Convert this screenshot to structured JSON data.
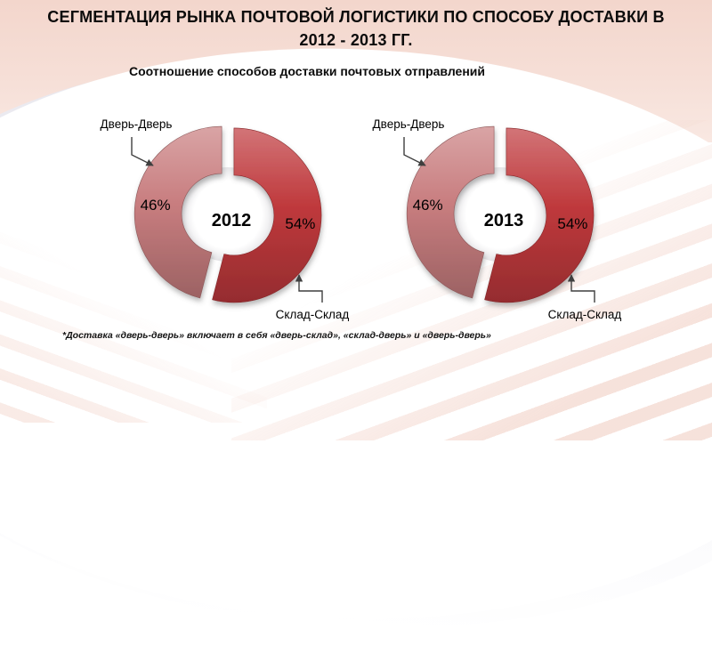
{
  "page": {
    "title_line1": "СЕГМЕНТАЦИЯ РЫНКА ПОЧТОВОЙ ЛОГИСТИКИ ПО СПОСОБУ ДОСТАВКИ В",
    "title_line2": "2012 - 2013 ГГ.",
    "subtitle": "Соотношение способов доставки почтовых отправлений",
    "footnote": "*Доставка «дверь-дверь» включает в себя «дверь-склад», «склад-дверь» и «дверь-дверь»"
  },
  "colors": {
    "door_to_door": "#c87d7f",
    "warehouse_to_warehouse": "#bf393c",
    "arrow": "#3f3f3f",
    "text": "#000000",
    "background_top": "#f3d6cc"
  },
  "chart_data": [
    {
      "type": "pie",
      "donut": true,
      "exploded": true,
      "center_label": "2012",
      "start_angle_deg": 0,
      "direction": "clockwise",
      "legend": false,
      "segments": [
        {
          "label": "Склад-Склад",
          "value": 54,
          "display": "54%",
          "color": "#bf393c"
        },
        {
          "label": "Дверь-Дверь",
          "value": 46,
          "display": "46%",
          "color": "#c87d7f"
        }
      ]
    },
    {
      "type": "pie",
      "donut": true,
      "exploded": true,
      "center_label": "2013",
      "start_angle_deg": 0,
      "direction": "clockwise",
      "legend": false,
      "segments": [
        {
          "label": "Склад-Склад",
          "value": 54,
          "display": "54%",
          "color": "#bf393c"
        },
        {
          "label": "Дверь-Дверь",
          "value": 46,
          "display": "46%",
          "color": "#c87d7f"
        }
      ]
    }
  ]
}
